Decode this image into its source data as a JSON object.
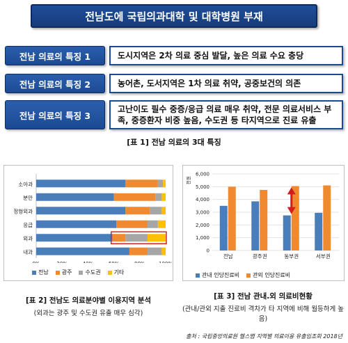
{
  "title": "전남도에 국립의과대학 및 대학병원 부재",
  "features": [
    {
      "label": "전남 의료의 특징 1",
      "text": "도시지역은 2차 의료 중심 발달, 높은 의료 수요 충당"
    },
    {
      "label": "전남 의료의 특징 2",
      "text": "농어촌, 도서지역은 1차 의료 취약, 공중보건의 의존"
    },
    {
      "label": "전남 의료의 특징 3",
      "text": "고난이도 필수 중증/응급 의료 매우 취약, 전문 의료서비스 부족, 중증환자 비중 높음, 수도권 등 타지역으로 진료 유출"
    }
  ],
  "caption1": "[표 1] 전남 의료의 3대 특징",
  "chart_data": [
    {
      "type": "bar",
      "orientation": "horizontal-stacked-100",
      "categories": [
        "소아과",
        "분만",
        "정형외과",
        "응급",
        "외과",
        "내과"
      ],
      "series": [
        {
          "name": "전남",
          "values": [
            69,
            60,
            69,
            62,
            59,
            72
          ],
          "color": "#4a7ebb"
        },
        {
          "name": "광주",
          "values": [
            25,
            32,
            19,
            24,
            10,
            14
          ],
          "color": "#f08a30"
        },
        {
          "name": "수도권",
          "values": [
            4,
            5,
            9,
            8,
            17,
            11
          ],
          "color": "#a6a6a6"
        },
        {
          "name": "기타",
          "values": [
            2,
            3,
            3,
            6,
            14,
            3
          ],
          "color": "#ffc000"
        }
      ],
      "xticks": [
        "0%",
        "20%",
        "40%",
        "60%",
        "80%",
        "100%"
      ],
      "highlight": "외과"
    },
    {
      "type": "bar",
      "orientation": "vertical-grouped",
      "categories": [
        "전남",
        "광주권",
        "동부권",
        "서부권"
      ],
      "series": [
        {
          "name": "관내 인당진료비",
          "values": [
            3500,
            3850,
            2750,
            2950
          ],
          "color": "#4a7ebb"
        },
        {
          "name": "관외 인당진료비",
          "values": [
            5000,
            4750,
            5050,
            5100
          ],
          "color": "#f08a30"
        }
      ],
      "ylabel": "천원",
      "ylim": [
        0,
        6000
      ],
      "yticks": [
        "0",
        "1,000",
        "2,000",
        "3,000",
        "4,000",
        "5,000",
        "6,000"
      ],
      "annotation": "double-arrow-동부권"
    }
  ],
  "caption2": {
    "main": "[표 2] 전남도 의료분야별 이용지역 분석",
    "sub": "(외과는 광주 및 수도권 유출 매우 심각)"
  },
  "caption3": {
    "main": "[표 3] 전남 관내.외 의료비현황",
    "sub": "(관내/관외 지출 진료비 격차가 타 지역에 비해 월등하게 높음)"
  },
  "source": "출처 : 국립중앙의료원 헬스맵 지역별 의료이용 유출입조회 2018년"
}
